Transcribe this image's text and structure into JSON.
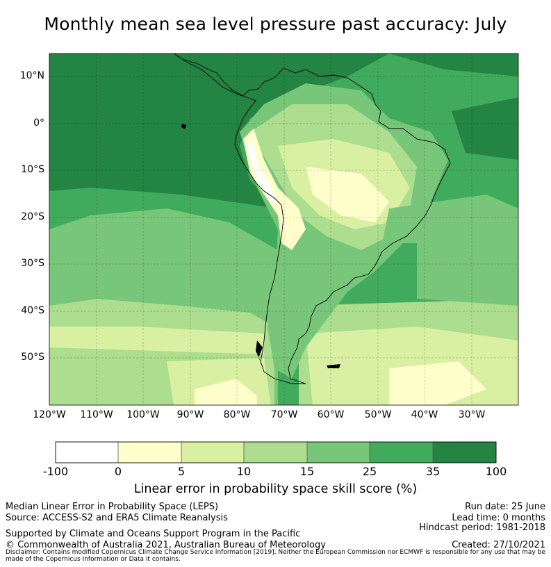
{
  "title": "Monthly mean sea level pressure past accuracy: July",
  "map": {
    "lat_labels": [
      "10°N",
      "0°",
      "10°S",
      "20°S",
      "30°S",
      "40°S",
      "50°S"
    ],
    "lon_labels": [
      "120°W",
      "110°W",
      "100°W",
      "90°W",
      "80°W",
      "70°W",
      "60°W",
      "50°W",
      "40°W",
      "30°W"
    ],
    "lon_range": [
      -120,
      -20
    ],
    "lat_range": [
      -60,
      15
    ]
  },
  "colorbar": {
    "ticks": [
      "-100",
      "0",
      "5",
      "10",
      "15",
      "25",
      "35",
      "100"
    ],
    "label": "Linear error in probability space skill score (%)",
    "colors": [
      "#ffffff",
      "#ffffcc",
      "#d9f0a3",
      "#addd8e",
      "#78c679",
      "#41ab5d",
      "#238443"
    ]
  },
  "footer": {
    "left1": "Median Linear Error in Probability Space (LEPS)",
    "left2": "Source: ACCESS-S2 and ERA5 Climate Reanalysis",
    "left3": "Supported by Climate and Oceans Support Program in the Pacific",
    "left4": "© Commonwealth of Australia 2021, Australian Bureau of Meteorology",
    "right1": "Run date: 25 June",
    "right2": "Lead time: 0 months",
    "right3": "Hindcast period: 1981-2018",
    "right4": "Created: 27/10/2021",
    "disclaimer": "Disclaimer: Contains modified Copernicus Climate Change Service Information [2019]. Neither the European Commission nor ECMWF is responsible for any use that may be made of the Copernicus Information or Data it contains."
  }
}
